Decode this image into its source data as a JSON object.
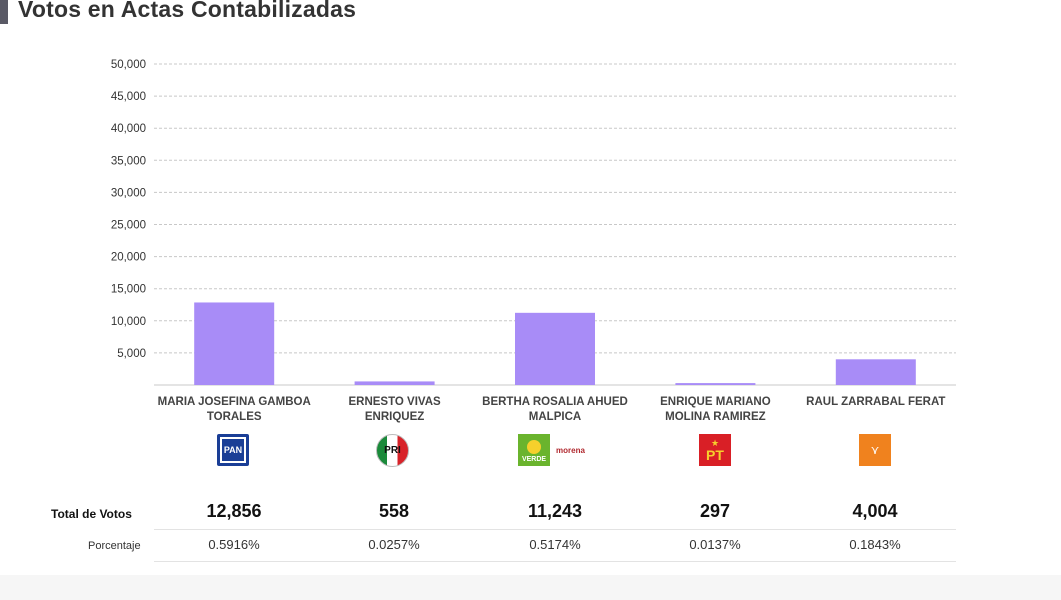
{
  "page": {
    "title": "Votos en Actas Contabilizadas"
  },
  "colors": {
    "bar": "#a88cf7",
    "grid": "#c8c8c8",
    "title_bar": "#5a5a66"
  },
  "chart_data": {
    "type": "bar",
    "title": "",
    "xlabel": "",
    "ylabel": "",
    "ylim": [
      0,
      50000
    ],
    "yticks": [
      "5,000",
      "10,000",
      "15,000",
      "20,000",
      "25,000",
      "30,000",
      "35,000",
      "40,000",
      "45,000",
      "50,000"
    ],
    "categories": [
      [
        "MARIA JOSEFINA GAMBOA",
        "TORALES"
      ],
      [
        "ERNESTO VIVAS",
        "ENRIQUEZ"
      ],
      [
        "BERTHA ROSALIA AHUED",
        "MALPICA"
      ],
      [
        "ENRIQUE MARIANO",
        "MOLINA RAMIREZ"
      ],
      [
        "RAUL ZARRABAL FERAT"
      ]
    ],
    "values": [
      12856,
      558,
      11243,
      297,
      4004
    ],
    "grid": true
  },
  "party_logos": [
    {
      "icon": "pan-logo",
      "text": "PAN"
    },
    {
      "icon": "pri-logo",
      "text": "PRI"
    },
    {
      "icon": "verde-logo",
      "text": "VERDE",
      "extra": "morena"
    },
    {
      "icon": "pt-logo",
      "text": "PT"
    },
    {
      "icon": "movimiento-ciudadano-logo"
    }
  ],
  "table": {
    "total_label": "Total de Votos",
    "pct_label": "Porcentaje",
    "totals": [
      "12,856",
      "558",
      "11,243",
      "297",
      "4,004"
    ],
    "percents": [
      "0.5916%",
      "0.0257%",
      "0.5174%",
      "0.0137%",
      "0.1843%"
    ]
  }
}
